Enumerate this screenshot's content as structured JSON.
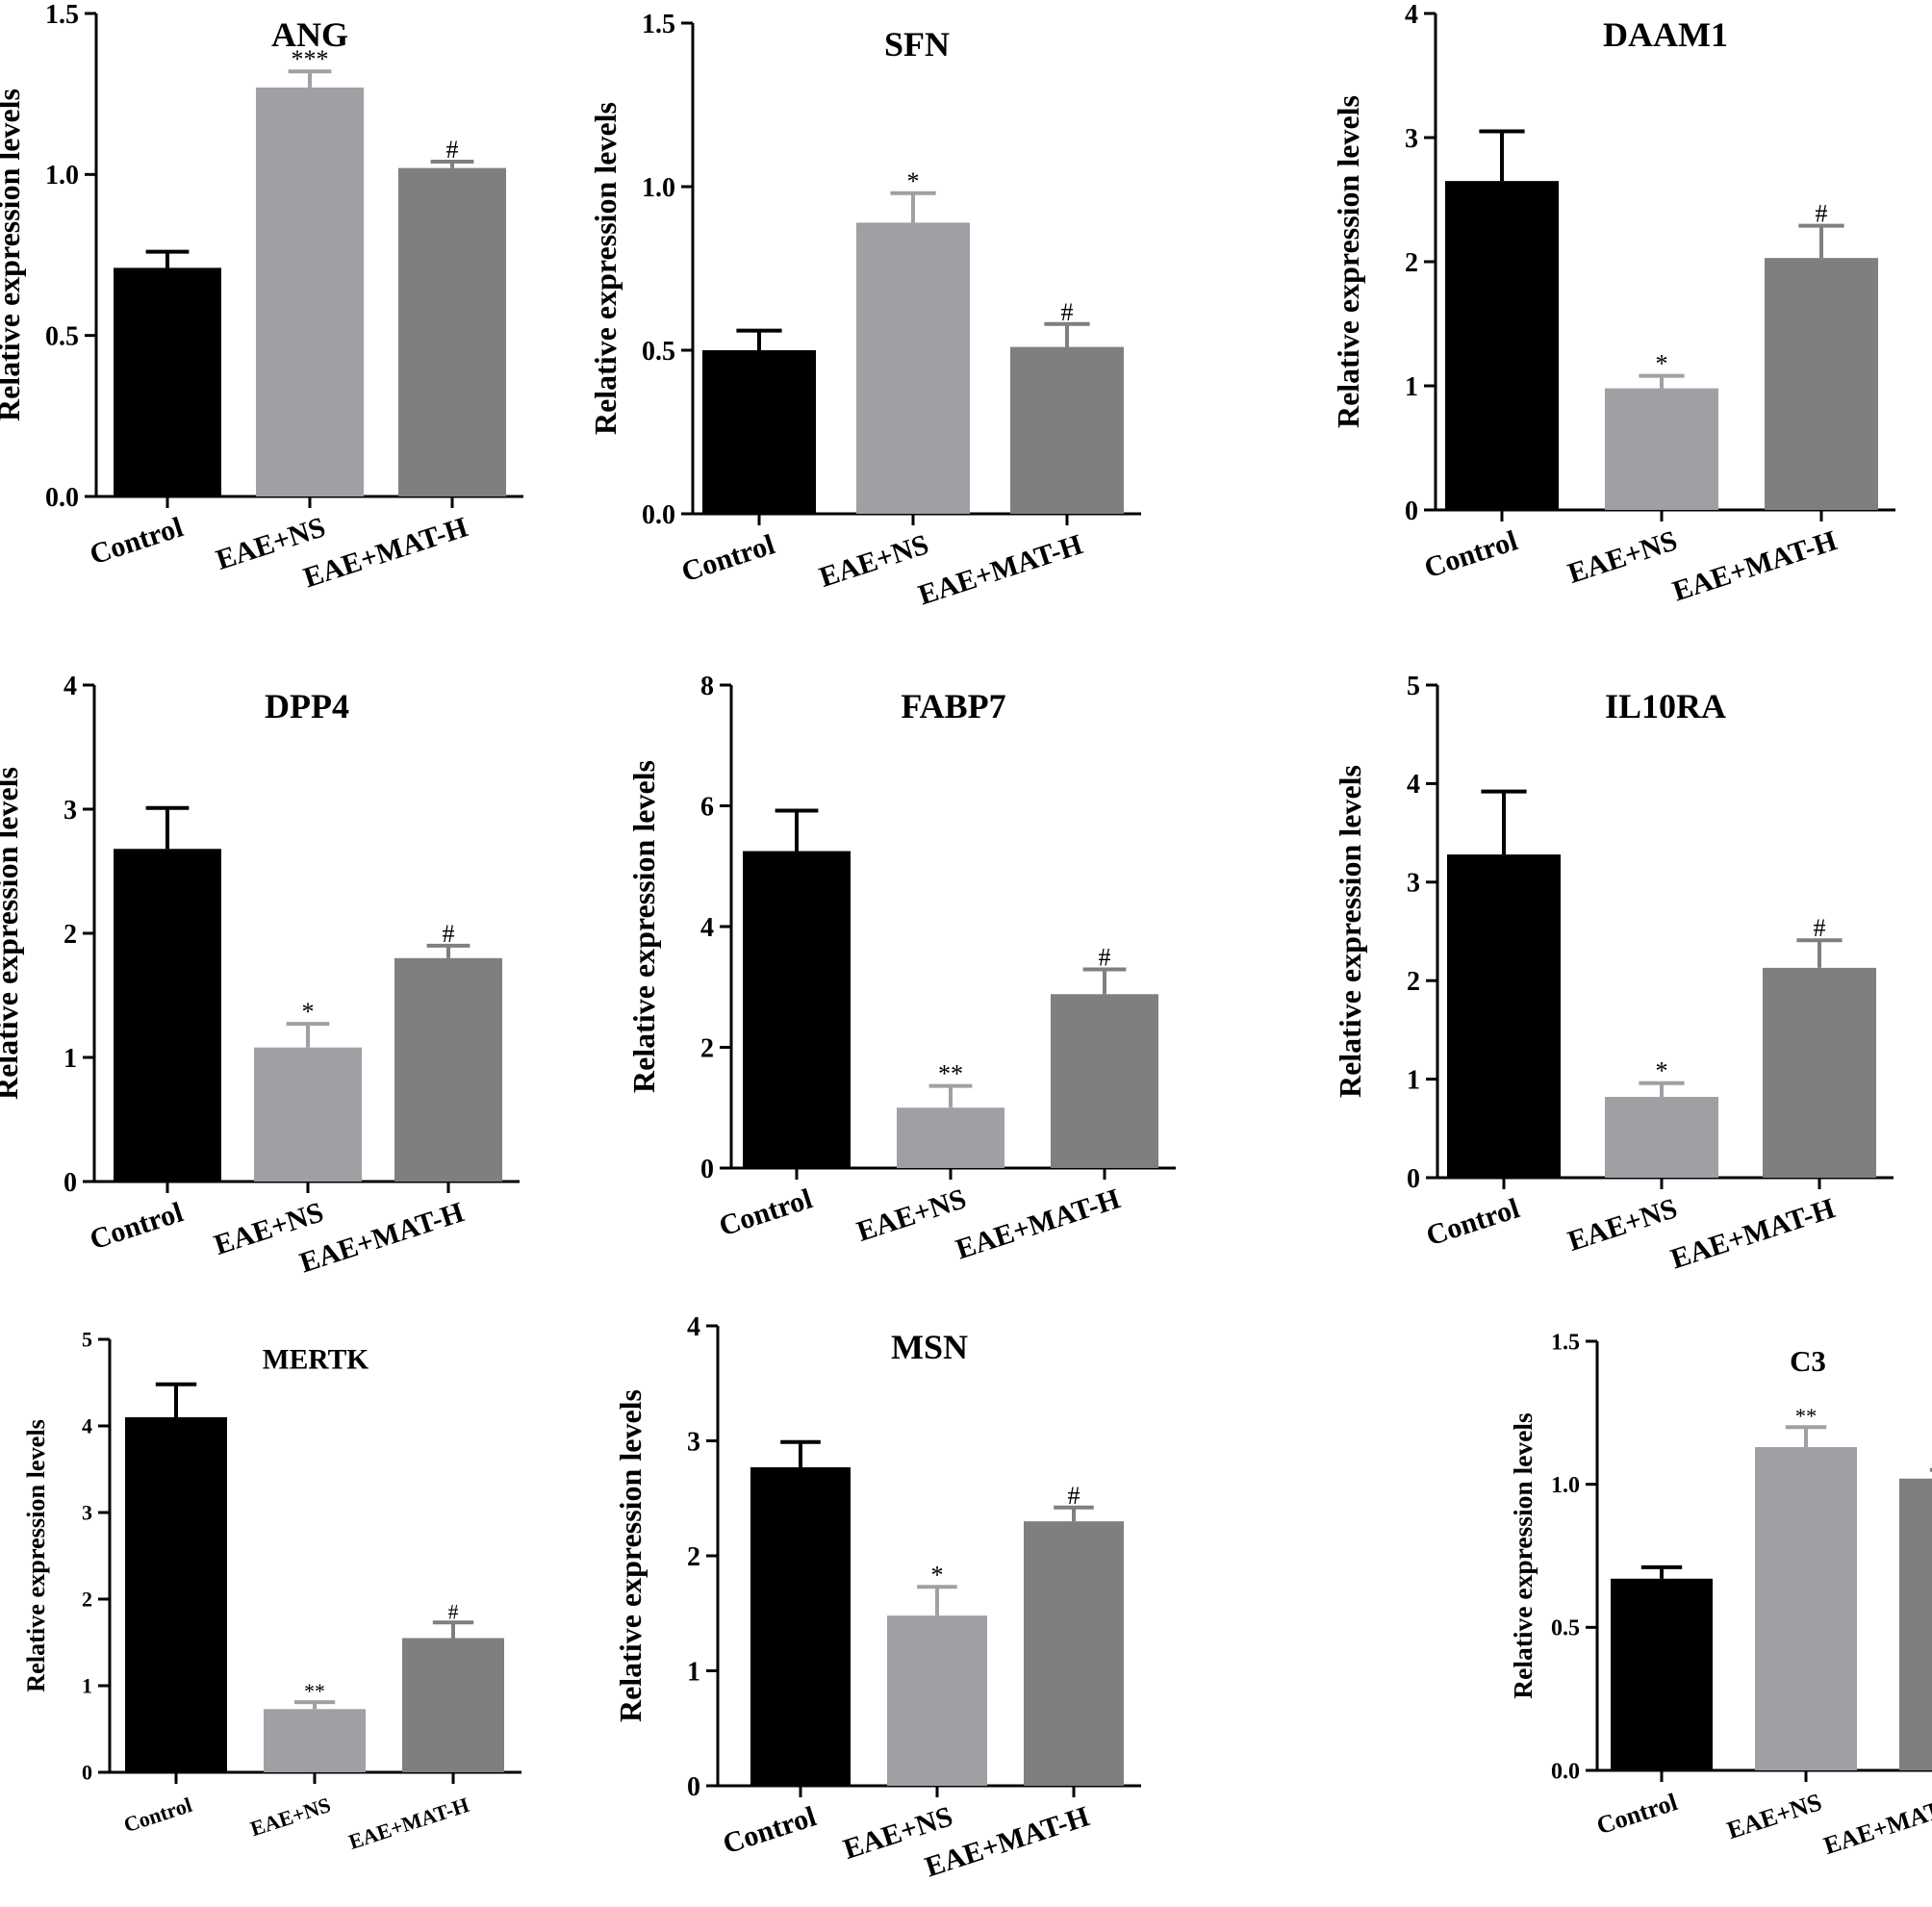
{
  "figure": {
    "colors": {
      "Control": "#000000",
      "EAE+NS": "#a0a0a4",
      "EAE+MAT-H": "#7f7f7f"
    }
  },
  "chart_data": [
    {
      "type": "bar",
      "title": "ANG",
      "ylabel": "Relative expression levels",
      "xlabel": "",
      "categories": [
        "Control",
        "EAE+NS",
        "EAE+MAT-H"
      ],
      "values": [
        0.71,
        1.27,
        1.02
      ],
      "errors": [
        0.05,
        0.05,
        0.02
      ],
      "significance": [
        "",
        "***",
        "#"
      ],
      "ylim": [
        0,
        1.5
      ],
      "yticks": [
        "0.0",
        "0.5",
        "1.0",
        "1.5"
      ]
    },
    {
      "type": "bar",
      "title": "SFN",
      "ylabel": "Relative expression levels",
      "xlabel": "",
      "categories": [
        "Control",
        "EAE+NS",
        "EAE+MAT-H"
      ],
      "values": [
        0.5,
        0.89,
        0.51
      ],
      "errors": [
        0.06,
        0.09,
        0.07
      ],
      "significance": [
        "",
        "*",
        "#"
      ],
      "ylim": [
        0,
        1.5
      ],
      "yticks": [
        "0.0",
        "0.5",
        "1.0",
        "1.5"
      ]
    },
    {
      "type": "bar",
      "title": "DAAM1",
      "ylabel": "Relative expression levels",
      "xlabel": "",
      "categories": [
        "Control",
        "EAE+NS",
        "EAE+MAT-H"
      ],
      "values": [
        2.65,
        0.98,
        2.03
      ],
      "errors": [
        0.4,
        0.1,
        0.26
      ],
      "significance": [
        "",
        "*",
        "#"
      ],
      "ylim": [
        0,
        4
      ],
      "yticks": [
        "0",
        "1",
        "2",
        "3",
        "4"
      ]
    },
    {
      "type": "bar",
      "title": "DPP4",
      "ylabel": "Relative expression levels",
      "xlabel": "",
      "categories": [
        "Control",
        "EAE+NS",
        "EAE+MAT-H"
      ],
      "values": [
        2.68,
        1.08,
        1.8
      ],
      "errors": [
        0.33,
        0.19,
        0.1
      ],
      "significance": [
        "",
        "*",
        "#"
      ],
      "ylim": [
        0,
        4
      ],
      "yticks": [
        "0",
        "1",
        "2",
        "3",
        "4"
      ]
    },
    {
      "type": "bar",
      "title": "FABP7",
      "ylabel": "Relative expression levels",
      "xlabel": "",
      "categories": [
        "Control",
        "EAE+NS",
        "EAE+MAT-H"
      ],
      "values": [
        5.25,
        1.0,
        2.88
      ],
      "errors": [
        0.67,
        0.36,
        0.41
      ],
      "significance": [
        "",
        "**",
        "#"
      ],
      "ylim": [
        0,
        8
      ],
      "yticks": [
        "0",
        "2",
        "4",
        "6",
        "8"
      ]
    },
    {
      "type": "bar",
      "title": "IL10RA",
      "ylabel": "Relative expression levels",
      "xlabel": "",
      "categories": [
        "Control",
        "EAE+NS",
        "EAE+MAT-H"
      ],
      "values": [
        3.28,
        0.82,
        2.13
      ],
      "errors": [
        0.64,
        0.14,
        0.28
      ],
      "significance": [
        "",
        "*",
        "#"
      ],
      "ylim": [
        0,
        5
      ],
      "yticks": [
        "0",
        "1",
        "2",
        "3",
        "4",
        "5"
      ]
    },
    {
      "type": "bar",
      "title": "MERTK",
      "ylabel": "Relative expression levels",
      "xlabel": "",
      "categories": [
        "Control",
        "EAE+NS",
        "EAE+MAT-H"
      ],
      "values": [
        4.1,
        0.73,
        1.55
      ],
      "errors": [
        0.38,
        0.08,
        0.18
      ],
      "significance": [
        "",
        "**",
        "#"
      ],
      "ylim": [
        0,
        5
      ],
      "yticks": [
        "0",
        "1",
        "2",
        "3",
        "4",
        "5"
      ]
    },
    {
      "type": "bar",
      "title": "MSN",
      "ylabel": "Relative expression levels",
      "xlabel": "",
      "categories": [
        "Control",
        "EAE+NS",
        "EAE+MAT-H"
      ],
      "values": [
        2.77,
        1.48,
        2.3
      ],
      "errors": [
        0.22,
        0.25,
        0.12
      ],
      "significance": [
        "",
        "*",
        "#"
      ],
      "ylim": [
        0,
        4
      ],
      "yticks": [
        "0",
        "1",
        "2",
        "3",
        "4"
      ]
    },
    {
      "type": "bar",
      "title": "C3",
      "ylabel": "Relative expression levels",
      "xlabel": "",
      "categories": [
        "Control",
        "EAE+NS",
        "EAE+MAT-H"
      ],
      "values": [
        0.67,
        1.13,
        1.02
      ],
      "errors": [
        0.04,
        0.07,
        0.03
      ],
      "significance": [
        "",
        "**",
        "ns"
      ],
      "ylim": [
        0,
        1.5
      ],
      "yticks": [
        "0.0",
        "0.5",
        "1.0",
        "1.5"
      ]
    }
  ]
}
